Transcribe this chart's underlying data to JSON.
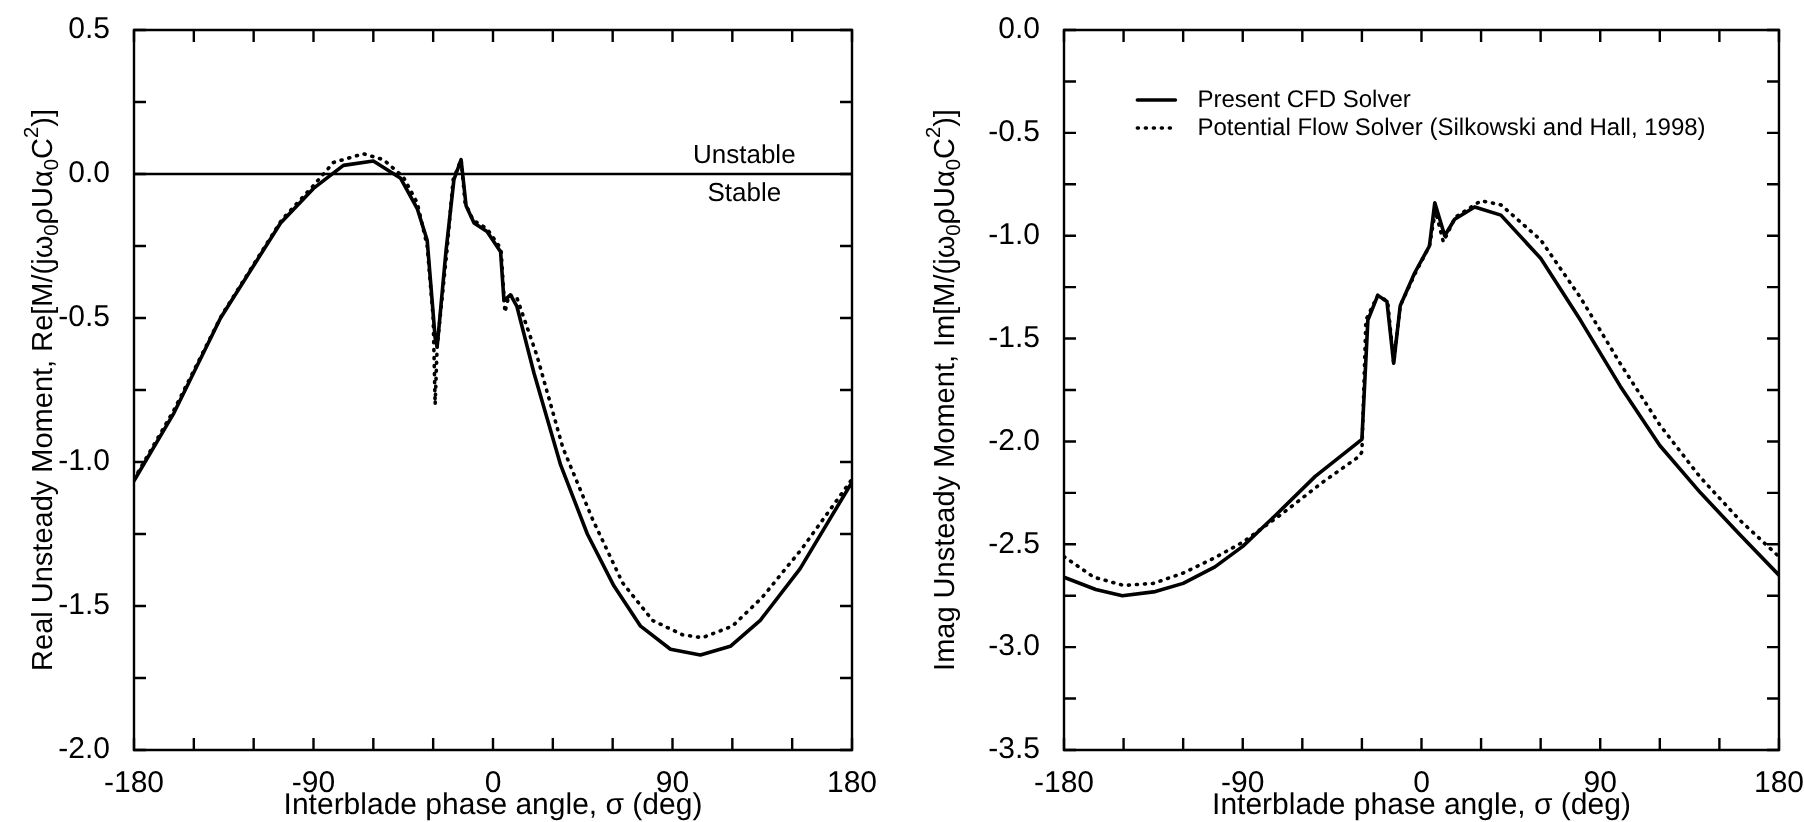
{
  "chart_data": [
    {
      "type": "line",
      "xlabel": "Interblade phase angle, σ (deg)",
      "ylabel": "Real Unsteady Moment, Re[M/(jω$_{0}$ρUα$_{0}$C$^{2}$)]",
      "marker": "none",
      "legend": false,
      "grid": false,
      "xlim": [
        -180,
        180
      ],
      "xticks": [
        -180,
        {
          "value": -150,
          "label": null
        },
        {
          "value": -120,
          "label": null
        },
        -90,
        {
          "value": -60,
          "label": null
        },
        {
          "value": -30,
          "label": null
        },
        0,
        {
          "value": 30,
          "label": null
        },
        {
          "value": 60,
          "label": null
        },
        90,
        {
          "value": 120,
          "label": null
        },
        {
          "value": 150,
          "label": null
        },
        180
      ],
      "ylim": [
        -2,
        0.5
      ],
      "yticks": [
        {
          "value": -2,
          "label": "-2.0"
        },
        {
          "value": -1.75,
          "label": null
        },
        -1.5,
        {
          "value": -1.25,
          "label": null
        },
        {
          "value": -1,
          "label": "-1.0"
        },
        {
          "value": -0.75,
          "label": null
        },
        -0.5,
        {
          "value": -0.25,
          "label": null
        },
        {
          "value": 0,
          "label": "0.0"
        },
        {
          "value": 0.25,
          "label": null
        },
        0.5
      ],
      "ref_lines": [
        {
          "axis": "y",
          "value": 0,
          "color": "#000000"
        }
      ],
      "annotations": [
        "Unstable",
        "Stable"
      ],
      "series": [
        {
          "color": "#000000",
          "line_style": "solid",
          "x": [
            -180,
            -160,
            -136.6,
            -106.5,
            -90,
            -75,
            -60,
            -46.3,
            -38,
            -33,
            -29,
            -28,
            -23.6,
            -19.6,
            -16,
            -13.5,
            -9.5,
            -3,
            3.8,
            5.5,
            8.8,
            12,
            20.5,
            33.9,
            47.3,
            60.6,
            74,
            89,
            104,
            119,
            134,
            154,
            180
          ],
          "values": [
            -1.065,
            -0.83,
            -0.5,
            -0.17,
            -0.05,
            0.03,
            0.045,
            -0.015,
            -0.12,
            -0.23,
            -0.57,
            -0.6,
            -0.27,
            -0.02,
            0.05,
            -0.11,
            -0.17,
            -0.2,
            -0.27,
            -0.44,
            -0.42,
            -0.46,
            -0.69,
            -1.01,
            -1.25,
            -1.43,
            -1.57,
            -1.65,
            -1.67,
            -1.64,
            -1.55,
            -1.37,
            -1.07
          ]
        },
        {
          "color": "#000000",
          "line_style": "dotted",
          "x": [
            -180,
            -160,
            -136,
            -106,
            -90,
            -80,
            -65,
            -55,
            -45,
            -38,
            -33,
            -30,
            -29,
            -28,
            -23,
            -20,
            -16,
            -14,
            -10,
            -3,
            4,
            6,
            8,
            12,
            22,
            35,
            50,
            65,
            80,
            95,
            105,
            120,
            135,
            155,
            180
          ],
          "values": [
            -1.06,
            -0.82,
            -0.49,
            -0.16,
            -0.04,
            0.04,
            0.07,
            0.05,
            -0.01,
            -0.1,
            -0.25,
            -0.5,
            -0.8,
            -0.6,
            -0.26,
            -0.02,
            0.05,
            -0.1,
            -0.16,
            -0.19,
            -0.26,
            -0.48,
            -0.42,
            -0.43,
            -0.63,
            -0.95,
            -1.2,
            -1.42,
            -1.55,
            -1.6,
            -1.61,
            -1.57,
            -1.47,
            -1.3,
            -1.06
          ]
        }
      ]
    },
    {
      "type": "line",
      "xlabel": "Interblade phase angle, σ (deg)",
      "ylabel": "Imag Unsteady Moment, Im[M/(jω$_{0}$ρUα$_{0}$C$^{2}$)]",
      "marker": "none",
      "legend": "top",
      "grid": false,
      "xlim": [
        -180,
        180
      ],
      "xticks": [
        -180,
        {
          "value": -150,
          "label": null
        },
        {
          "value": -120,
          "label": null
        },
        -90,
        {
          "value": -60,
          "label": null
        },
        {
          "value": -30,
          "label": null
        },
        0,
        {
          "value": 30,
          "label": null
        },
        {
          "value": 60,
          "label": null
        },
        90,
        {
          "value": 120,
          "label": null
        },
        {
          "value": 150,
          "label": null
        },
        180
      ],
      "ylim": [
        -3.5,
        0
      ],
      "yticks": [
        -3.5,
        {
          "value": -3.25,
          "label": null
        },
        {
          "value": -3,
          "label": "-3.0"
        },
        {
          "value": -2.75,
          "label": null
        },
        -2.5,
        {
          "value": -2.25,
          "label": null
        },
        {
          "value": -2,
          "label": "-2.0"
        },
        {
          "value": -1.75,
          "label": null
        },
        -1.5,
        {
          "value": -1.25,
          "label": null
        },
        {
          "value": -1,
          "label": "-1.0"
        },
        {
          "value": -0.75,
          "label": null
        },
        -0.5,
        {
          "value": -0.25,
          "label": null
        },
        {
          "value": 0,
          "label": "0.0"
        }
      ],
      "series": [
        {
          "name": "Present CFD Solver",
          "color": "#000000",
          "line_style": "solid",
          "x": [
            -180,
            -164,
            -150.6,
            -134,
            -120,
            -104,
            -90,
            -73.6,
            -53.5,
            -30,
            -27,
            -22,
            -17.4,
            -14,
            -10.7,
            -3.4,
            4,
            6.7,
            11.7,
            16.7,
            26.8,
            40,
            60,
            80,
            100,
            120,
            140.5,
            160,
            180
          ],
          "values": [
            -2.66,
            -2.72,
            -2.75,
            -2.73,
            -2.69,
            -2.61,
            -2.51,
            -2.36,
            -2.17,
            -1.99,
            -1.41,
            -1.29,
            -1.32,
            -1.62,
            -1.34,
            -1.18,
            -1.05,
            -0.84,
            -1,
            -0.92,
            -0.86,
            -0.9,
            -1.11,
            -1.41,
            -1.73,
            -2.02,
            -2.25,
            -2.45,
            -2.65
          ]
        },
        {
          "name": "Potential Flow Solver (Silkowski and Hall, 1998)",
          "color": "#000000",
          "line_style": "dotted",
          "x": [
            -180,
            -165,
            -150,
            -135,
            -120,
            -105,
            -90,
            -70,
            -50,
            -31,
            -30,
            -28,
            -22,
            -17,
            -14,
            -10.7,
            -3,
            4,
            7,
            11,
            17,
            30,
            40,
            60,
            80,
            100,
            120,
            140,
            160,
            180
          ],
          "values": [
            -2.56,
            -2.66,
            -2.7,
            -2.69,
            -2.64,
            -2.57,
            -2.49,
            -2.35,
            -2.2,
            -2.07,
            -2.05,
            -1.41,
            -1.29,
            -1.32,
            -1.62,
            -1.34,
            -1.18,
            -1.05,
            -0.88,
            -1.03,
            -0.91,
            -0.83,
            -0.85,
            -1.02,
            -1.3,
            -1.62,
            -1.92,
            -2.17,
            -2.38,
            -2.56
          ]
        }
      ]
    }
  ]
}
